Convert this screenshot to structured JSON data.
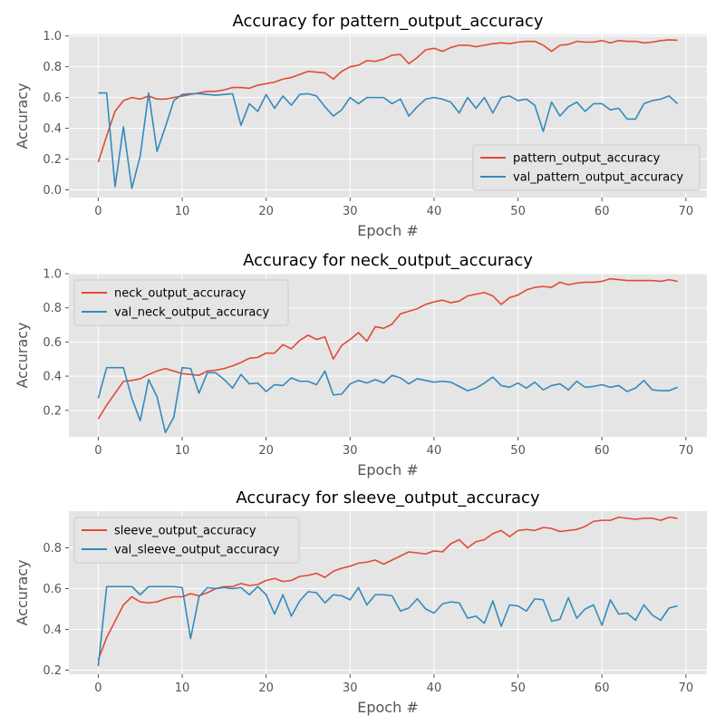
{
  "chart_data": [
    {
      "type": "line",
      "title": "Accuracy for pattern_output_accuracy",
      "xlabel": "Epoch #",
      "ylabel": "Accuracy",
      "xlim": [
        -3.5,
        72.5
      ],
      "ylim": [
        -0.05,
        1.01
      ],
      "xticks": [
        0,
        10,
        20,
        30,
        40,
        50,
        60,
        70
      ],
      "yticks": [
        0.0,
        0.2,
        0.4,
        0.6,
        0.8,
        1.0
      ],
      "ytick_labels": [
        "0.0",
        "0.2",
        "0.4",
        "0.6",
        "0.8",
        "1.0"
      ],
      "grid": true,
      "legend_position": "lower-right",
      "colors": [
        "#e24a33",
        "#348abd"
      ],
      "series": [
        {
          "name": "pattern_output_accuracy",
          "values": [
            0.18,
            0.35,
            0.51,
            0.58,
            0.6,
            0.59,
            0.61,
            0.59,
            0.59,
            0.6,
            0.61,
            0.62,
            0.63,
            0.64,
            0.64,
            0.65,
            0.665,
            0.665,
            0.66,
            0.68,
            0.69,
            0.7,
            0.72,
            0.73,
            0.75,
            0.77,
            0.765,
            0.76,
            0.72,
            0.77,
            0.8,
            0.81,
            0.84,
            0.835,
            0.85,
            0.875,
            0.88,
            0.82,
            0.86,
            0.91,
            0.92,
            0.9,
            0.925,
            0.94,
            0.94,
            0.93,
            0.94,
            0.95,
            0.955,
            0.95,
            0.96,
            0.965,
            0.965,
            0.94,
            0.9,
            0.94,
            0.945,
            0.965,
            0.96,
            0.96,
            0.97,
            0.955,
            0.97,
            0.965,
            0.965,
            0.955,
            0.96,
            0.97,
            0.975,
            0.972
          ]
        },
        {
          "name": "val_pattern_output_accuracy",
          "values": [
            0.63,
            0.63,
            0.02,
            0.41,
            0.01,
            0.22,
            0.63,
            0.25,
            0.41,
            0.58,
            0.62,
            0.625,
            0.625,
            0.62,
            0.615,
            0.62,
            0.625,
            0.42,
            0.56,
            0.51,
            0.62,
            0.53,
            0.61,
            0.55,
            0.62,
            0.625,
            0.61,
            0.54,
            0.48,
            0.52,
            0.6,
            0.56,
            0.6,
            0.6,
            0.6,
            0.56,
            0.59,
            0.48,
            0.54,
            0.59,
            0.6,
            0.59,
            0.57,
            0.5,
            0.6,
            0.53,
            0.6,
            0.5,
            0.6,
            0.61,
            0.58,
            0.59,
            0.55,
            0.38,
            0.57,
            0.48,
            0.54,
            0.57,
            0.51,
            0.56,
            0.56,
            0.52,
            0.53,
            0.46,
            0.46,
            0.56,
            0.58,
            0.59,
            0.61,
            0.56
          ]
        }
      ]
    },
    {
      "type": "line",
      "title": "Accuracy for neck_output_accuracy",
      "xlabel": "Epoch #",
      "ylabel": "Accuracy",
      "xlim": [
        -3.5,
        72.5
      ],
      "ylim": [
        0.045,
        1.0
      ],
      "xticks": [
        0,
        10,
        20,
        30,
        40,
        50,
        60,
        70
      ],
      "yticks": [
        0.2,
        0.4,
        0.6,
        0.8,
        1.0
      ],
      "ytick_labels": [
        "0.2",
        "0.4",
        "0.6",
        "0.8",
        "1.0"
      ],
      "grid": true,
      "legend_position": "upper-left",
      "colors": [
        "#e24a33",
        "#348abd"
      ],
      "series": [
        {
          "name": "neck_output_accuracy",
          "values": [
            0.15,
            0.23,
            0.3,
            0.37,
            0.375,
            0.385,
            0.41,
            0.43,
            0.445,
            0.43,
            0.415,
            0.41,
            0.405,
            0.43,
            0.435,
            0.445,
            0.46,
            0.48,
            0.505,
            0.51,
            0.535,
            0.535,
            0.585,
            0.56,
            0.61,
            0.64,
            0.615,
            0.63,
            0.5,
            0.58,
            0.615,
            0.655,
            0.605,
            0.69,
            0.68,
            0.705,
            0.765,
            0.78,
            0.795,
            0.82,
            0.835,
            0.845,
            0.83,
            0.84,
            0.87,
            0.88,
            0.89,
            0.87,
            0.82,
            0.86,
            0.875,
            0.905,
            0.92,
            0.925,
            0.92,
            0.95,
            0.935,
            0.945,
            0.95,
            0.95,
            0.955,
            0.97,
            0.965,
            0.96,
            0.96,
            0.96,
            0.96,
            0.955,
            0.965,
            0.955
          ]
        },
        {
          "name": "val_neck_output_accuracy",
          "values": [
            0.27,
            0.45,
            0.45,
            0.45,
            0.27,
            0.14,
            0.38,
            0.28,
            0.07,
            0.16,
            0.45,
            0.445,
            0.3,
            0.42,
            0.42,
            0.38,
            0.33,
            0.41,
            0.355,
            0.36,
            0.31,
            0.35,
            0.345,
            0.39,
            0.37,
            0.37,
            0.35,
            0.43,
            0.29,
            0.295,
            0.355,
            0.375,
            0.36,
            0.38,
            0.36,
            0.405,
            0.39,
            0.355,
            0.385,
            0.375,
            0.365,
            0.37,
            0.365,
            0.34,
            0.315,
            0.33,
            0.36,
            0.395,
            0.345,
            0.335,
            0.36,
            0.33,
            0.365,
            0.32,
            0.345,
            0.355,
            0.32,
            0.37,
            0.335,
            0.34,
            0.35,
            0.335,
            0.345,
            0.31,
            0.33,
            0.375,
            0.32,
            0.315,
            0.315,
            0.335
          ]
        }
      ]
    },
    {
      "type": "line",
      "title": "Accuracy for sleeve_output_accuracy",
      "xlabel": "Epoch #",
      "ylabel": "Accuracy",
      "xlim": [
        -3.5,
        72.5
      ],
      "ylim": [
        0.18,
        0.98
      ],
      "xticks": [
        0,
        10,
        20,
        30,
        40,
        50,
        60,
        70
      ],
      "yticks": [
        0.2,
        0.4,
        0.6,
        0.8
      ],
      "ytick_labels": [
        "0.2",
        "0.4",
        "0.6",
        "0.8"
      ],
      "grid": true,
      "legend_position": "upper-left",
      "colors": [
        "#e24a33",
        "#348abd"
      ],
      "series": [
        {
          "name": "sleeve_output_accuracy",
          "values": [
            0.25,
            0.36,
            0.44,
            0.52,
            0.56,
            0.535,
            0.53,
            0.535,
            0.55,
            0.56,
            0.56,
            0.575,
            0.565,
            0.58,
            0.6,
            0.61,
            0.61,
            0.625,
            0.615,
            0.62,
            0.64,
            0.65,
            0.635,
            0.64,
            0.66,
            0.665,
            0.675,
            0.655,
            0.685,
            0.7,
            0.71,
            0.725,
            0.73,
            0.74,
            0.72,
            0.74,
            0.76,
            0.78,
            0.775,
            0.77,
            0.785,
            0.78,
            0.82,
            0.84,
            0.8,
            0.83,
            0.84,
            0.87,
            0.885,
            0.855,
            0.885,
            0.89,
            0.885,
            0.9,
            0.895,
            0.88,
            0.885,
            0.89,
            0.905,
            0.93,
            0.935,
            0.935,
            0.95,
            0.945,
            0.94,
            0.945,
            0.945,
            0.935,
            0.95,
            0.945
          ]
        },
        {
          "name": "val_sleeve_output_accuracy",
          "values": [
            0.22,
            0.61,
            0.61,
            0.61,
            0.61,
            0.57,
            0.61,
            0.61,
            0.61,
            0.61,
            0.605,
            0.355,
            0.56,
            0.605,
            0.6,
            0.605,
            0.6,
            0.605,
            0.57,
            0.61,
            0.57,
            0.475,
            0.57,
            0.465,
            0.54,
            0.585,
            0.58,
            0.53,
            0.57,
            0.565,
            0.545,
            0.605,
            0.52,
            0.57,
            0.57,
            0.565,
            0.49,
            0.505,
            0.55,
            0.5,
            0.48,
            0.525,
            0.535,
            0.53,
            0.455,
            0.465,
            0.43,
            0.54,
            0.415,
            0.52,
            0.515,
            0.49,
            0.55,
            0.545,
            0.44,
            0.45,
            0.555,
            0.455,
            0.5,
            0.52,
            0.42,
            0.545,
            0.475,
            0.48,
            0.445,
            0.52,
            0.47,
            0.445,
            0.505,
            0.515
          ]
        }
      ]
    }
  ]
}
